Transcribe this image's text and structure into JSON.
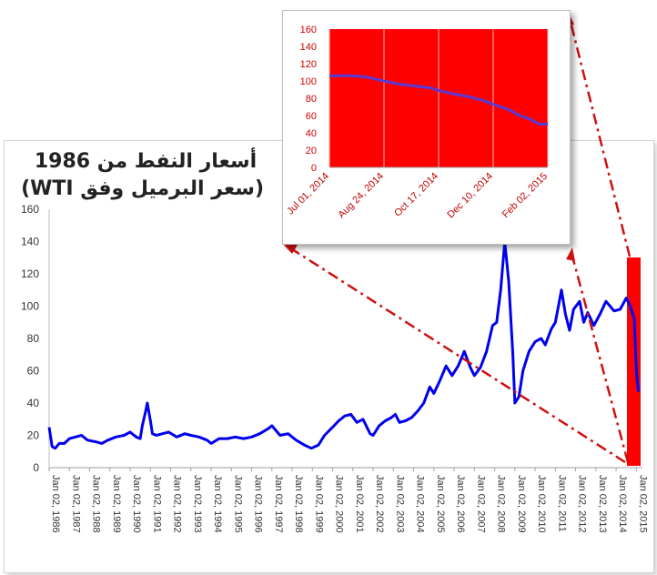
{
  "chart_data": [
    {
      "type": "line",
      "title": [
        "أسعار النفط من 1986",
        "(سعر البرميل وفق WTI)"
      ],
      "xlabel": "",
      "ylabel": "",
      "ylim": [
        0,
        160
      ],
      "yticks": [
        0,
        20,
        40,
        60,
        80,
        100,
        120,
        140,
        160
      ],
      "xlim": [
        1986.0,
        2015.3
      ],
      "xtick_labels": [
        "Jan 02, 1986",
        "Jan 02, 1987",
        "Jan 02, 1988",
        "Jan 02, 1989",
        "Jan 02, 1990",
        "Jan 02, 1991",
        "Jan 02, 1992",
        "Jan 02, 1993",
        "Jan 02, 1994",
        "Jan 02, 1995",
        "Jan 02, 1996",
        "Jan 02, 1997",
        "Jan 02, 1998",
        "Jan 02, 1999",
        "Jan 02, 2000",
        "Jan 02, 2001",
        "Jan 02, 2002",
        "Jan 02, 2003",
        "Jan 02, 2004",
        "Jan 02, 2005",
        "Jan 02, 2006",
        "Jan 02, 2007",
        "Jan 02, 2008",
        "Jan 02, 2009",
        "Jan 02, 2010",
        "Jan 02, 2011",
        "Jan 02, 2012",
        "Jan 02, 2013",
        "Jan 02, 2014",
        "Jan 02, 2015"
      ],
      "xtick_years": [
        1986,
        1987,
        1988,
        1989,
        1990,
        1991,
        1992,
        1993,
        1994,
        1995,
        1996,
        1997,
        1998,
        1999,
        2000,
        2001,
        2002,
        2003,
        2004,
        2005,
        2006,
        2007,
        2008,
        2009,
        2010,
        2011,
        2012,
        2013,
        2014,
        2015
      ],
      "grid": false,
      "series": [
        {
          "color": "#0000ee",
          "x": [
            1986.0,
            1986.15,
            1986.3,
            1986.5,
            1986.75,
            1987.0,
            1987.3,
            1987.6,
            1987.9,
            1988.3,
            1988.6,
            1988.9,
            1989.3,
            1989.7,
            1990.0,
            1990.3,
            1990.5,
            1990.6,
            1990.75,
            1990.85,
            1991.0,
            1991.1,
            1991.3,
            1991.6,
            1991.9,
            1992.3,
            1992.7,
            1993.0,
            1993.4,
            1993.8,
            1994.0,
            1994.4,
            1994.8,
            1995.2,
            1995.6,
            1996.0,
            1996.4,
            1996.8,
            1997.0,
            1997.4,
            1997.8,
            1998.2,
            1998.6,
            1998.95,
            1999.3,
            1999.6,
            2000.0,
            2000.3,
            2000.6,
            2000.9,
            2001.2,
            2001.5,
            2001.85,
            2002.0,
            2002.3,
            2002.6,
            2002.9,
            2003.1,
            2003.3,
            2003.6,
            2003.9,
            2004.2,
            2004.5,
            2004.8,
            2005.0,
            2005.3,
            2005.6,
            2005.9,
            2006.2,
            2006.5,
            2006.8,
            2007.0,
            2007.3,
            2007.6,
            2007.9,
            2008.1,
            2008.3,
            2008.5,
            2008.7,
            2008.9,
            2009.0,
            2009.2,
            2009.4,
            2009.7,
            2010.0,
            2010.3,
            2010.5,
            2010.8,
            2011.0,
            2011.3,
            2011.5,
            2011.7,
            2011.9,
            2012.2,
            2012.4,
            2012.6,
            2012.9,
            2013.2,
            2013.5,
            2013.7,
            2013.9,
            2014.2,
            2014.5,
            2014.7,
            2014.9,
            2015.0,
            2015.1
          ],
          "y": [
            25,
            13,
            12,
            15,
            15,
            18,
            19,
            20,
            17,
            16,
            15,
            17,
            19,
            20,
            22,
            19,
            18,
            26,
            34,
            40,
            29,
            21,
            20,
            21,
            22,
            19,
            21,
            20,
            19,
            17,
            15,
            18,
            18,
            19,
            18,
            19,
            21,
            24,
            26,
            20,
            21,
            17,
            14,
            12,
            14,
            20,
            25,
            29,
            32,
            33,
            28,
            30,
            21,
            20,
            26,
            29,
            31,
            33,
            28,
            29,
            31,
            35,
            40,
            50,
            46,
            54,
            63,
            57,
            63,
            72,
            62,
            57,
            62,
            72,
            88,
            90,
            110,
            140,
            115,
            70,
            40,
            44,
            60,
            72,
            78,
            80,
            76,
            86,
            90,
            110,
            95,
            85,
            98,
            103,
            90,
            96,
            88,
            95,
            103,
            100,
            97,
            98,
            105,
            100,
            92,
            60,
            47
          ]
        }
      ]
    },
    {
      "type": "line",
      "title": "",
      "xlabel": "",
      "ylabel": "",
      "ylim": [
        0,
        160
      ],
      "yticks": [
        0,
        20,
        40,
        60,
        80,
        100,
        120,
        140,
        160
      ],
      "xtick_labels": [
        "Jul 01, 2014",
        "Aug 24, 2014",
        "Oct 17, 2014",
        "Dec 10, 2014",
        "Feb 02, 2015"
      ],
      "xtick_dates": [
        "2014-07-01",
        "2014-08-24",
        "2014-10-17",
        "2014-12-10",
        "2015-02-02"
      ],
      "xlim": [
        "2014-07-01",
        "2015-02-02"
      ],
      "grid": "vertical",
      "plot_background": "#ff0000",
      "series": [
        {
          "color": "#5a3bd6",
          "x": [
            "2014-07-01",
            "2014-07-20",
            "2014-08-05",
            "2014-08-24",
            "2014-09-10",
            "2014-09-25",
            "2014-10-10",
            "2014-10-17",
            "2014-11-01",
            "2014-11-15",
            "2014-12-01",
            "2014-12-10",
            "2014-12-25",
            "2015-01-05",
            "2015-01-15",
            "2015-01-25",
            "2015-02-02"
          ],
          "y": [
            106,
            106,
            105,
            100,
            96,
            94,
            92,
            89,
            85,
            82,
            77,
            73,
            67,
            60,
            56,
            50,
            50
          ]
        }
      ]
    }
  ],
  "colors": {
    "main_line": "#0000ee",
    "inset_plot_bg": "#ff0000",
    "inset_line": "#5a3bd6",
    "highlight_bar": "#ff0000",
    "arrow": "#d01010"
  }
}
